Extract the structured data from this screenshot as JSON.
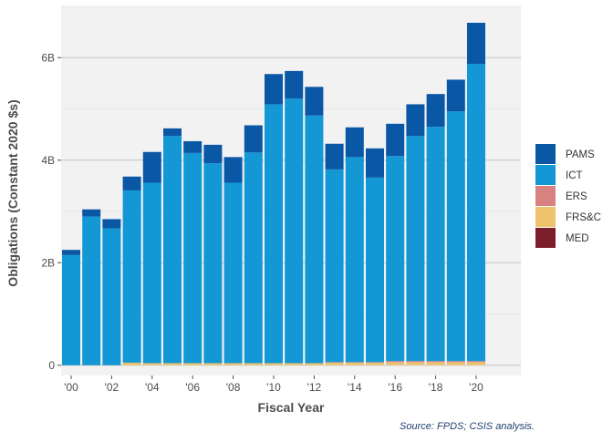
{
  "chart_data": {
    "type": "bar",
    "stacked": true,
    "xlabel": "Fiscal Year",
    "ylabel": "Obligations (Constant 2020 $s)",
    "caption": "Source: FPDS; CSIS analysis.",
    "categories": [
      "2000",
      "2001",
      "2002",
      "2003",
      "2004",
      "2005",
      "2006",
      "2007",
      "2008",
      "2009",
      "2010",
      "2011",
      "2012",
      "2013",
      "2014",
      "2015",
      "2016",
      "2017",
      "2018",
      "2019",
      "2020"
    ],
    "x_tick_labels": [
      "'00",
      "'02",
      "'04",
      "'06",
      "'08",
      "'10",
      "'12",
      "'14",
      "'16",
      "'18",
      "'20"
    ],
    "y_ticks": [
      0,
      2,
      4,
      6
    ],
    "y_tick_labels": [
      "0",
      "2B",
      "4B",
      "6B"
    ],
    "y_units": "billions",
    "ylim": [
      -0.2,
      7.0
    ],
    "grid": true,
    "legend_position": "right",
    "series": [
      {
        "name": "MED",
        "color": "#7b1d2b",
        "values": [
          0,
          0,
          0,
          0,
          0,
          0,
          0,
          0,
          0,
          0,
          0,
          0,
          0,
          0,
          0,
          0,
          0,
          0,
          0,
          0,
          0
        ]
      },
      {
        "name": "FRS&C",
        "color": "#eec36d",
        "values": [
          0,
          0,
          0,
          0.05,
          0.04,
          0.04,
          0.04,
          0.04,
          0.04,
          0.04,
          0.04,
          0.04,
          0.04,
          0.05,
          0.05,
          0.05,
          0.06,
          0.06,
          0.06,
          0.06,
          0.06
        ]
      },
      {
        "name": "ERS",
        "color": "#d98080",
        "values": [
          0,
          0,
          0,
          0,
          0,
          0,
          0,
          0,
          0,
          0,
          0,
          0,
          0,
          0.01,
          0.01,
          0.01,
          0.02,
          0.02,
          0.02,
          0.02,
          0.02
        ]
      },
      {
        "name": "ICT",
        "color": "#1397d5",
        "values": [
          2.15,
          2.9,
          2.67,
          3.36,
          3.52,
          4.43,
          4.1,
          3.9,
          3.52,
          4.11,
          5.05,
          5.16,
          4.83,
          3.76,
          4.0,
          3.6,
          4.0,
          4.39,
          4.57,
          4.87,
          5.8
        ]
      },
      {
        "name": "PAMS",
        "color": "#0a57a6",
        "values": [
          0.1,
          0.14,
          0.18,
          0.27,
          0.6,
          0.15,
          0.23,
          0.36,
          0.5,
          0.53,
          0.59,
          0.54,
          0.56,
          0.5,
          0.58,
          0.57,
          0.63,
          0.62,
          0.64,
          0.62,
          0.8
        ]
      }
    ]
  },
  "legend_order": [
    "PAMS",
    "ICT",
    "ERS",
    "FRS&C",
    "MED"
  ]
}
